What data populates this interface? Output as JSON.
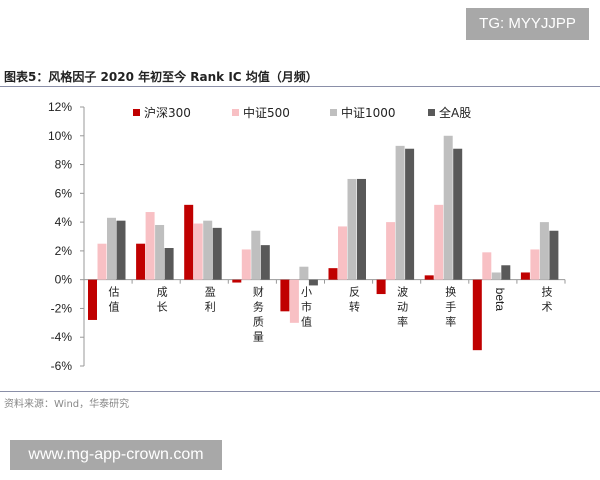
{
  "title": "图表5：风格因子 2020 年初至今 Rank IC 均值（月频）",
  "source": "资料来源：Wind，华泰研究",
  "watermarks": {
    "top": "TG: MYYJJPP",
    "bottom": "www.mg-app-crown.com"
  },
  "chart_data": {
    "type": "bar",
    "categories": [
      "估值",
      "成长",
      "盈利",
      "财务质量",
      "小市值",
      "反转",
      "波动率",
      "换手率",
      "beta",
      "技术"
    ],
    "series": [
      {
        "name": "沪深300",
        "color": "#c00000",
        "values": [
          -2.8,
          2.5,
          5.2,
          -0.2,
          -2.2,
          0.8,
          -1.0,
          0.3,
          -4.9,
          0.5
        ]
      },
      {
        "name": "中证500",
        "color": "#f8c0c4",
        "values": [
          2.5,
          4.7,
          3.9,
          2.1,
          -3.0,
          3.7,
          4.0,
          5.2,
          1.9,
          2.1
        ]
      },
      {
        "name": "中证1000",
        "color": "#bfbfbf",
        "values": [
          4.3,
          3.8,
          4.1,
          3.4,
          0.9,
          7.0,
          9.3,
          10.0,
          0.5,
          4.0
        ]
      },
      {
        "name": "全A股",
        "color": "#595959",
        "values": [
          4.1,
          2.2,
          3.6,
          2.4,
          -0.4,
          7.0,
          9.1,
          9.1,
          1.0,
          3.4
        ]
      }
    ],
    "yticks": [
      "12%",
      "10%",
      "8%",
      "6%",
      "4%",
      "2%",
      "0%",
      "-2%",
      "-4%",
      "-6%"
    ],
    "ylim": [
      -6,
      12
    ],
    "unit": "%",
    "legend": "top",
    "grid": false
  }
}
